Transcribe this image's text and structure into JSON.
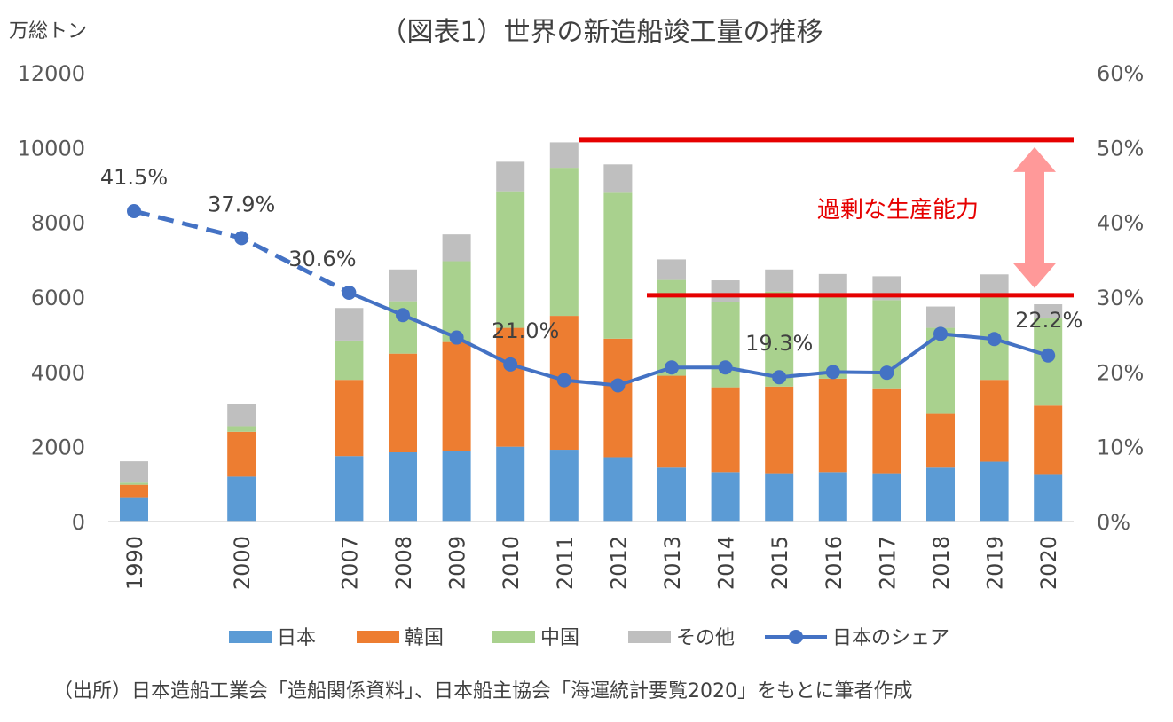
{
  "chart_data": {
    "type": "bar",
    "stacked": true,
    "title": "（図表1）世界の新造船竣工量の推移",
    "y_unit": "万総トン",
    "categories": [
      "1990",
      "2000",
      "2007",
      "2008",
      "2009",
      "2010",
      "2011",
      "2012",
      "2013",
      "2014",
      "2015",
      "2016",
      "2017",
      "2018",
      "2019",
      "2020"
    ],
    "ylim": [
      0,
      12000
    ],
    "y_ticks": [
      "0",
      "2000",
      "4000",
      "6000",
      "8000",
      "10000",
      "12000"
    ],
    "y2lim": [
      0,
      0.6
    ],
    "y2_ticks": [
      "0%",
      "10%",
      "20%",
      "30%",
      "40%",
      "50%",
      "60%"
    ],
    "series": [
      {
        "name": "日本",
        "color": "#5b9bd5",
        "values": [
          650,
          1200,
          1750,
          1850,
          1880,
          2000,
          1920,
          1720,
          1440,
          1320,
          1290,
          1320,
          1290,
          1440,
          1600,
          1270
        ]
      },
      {
        "name": "韓国",
        "color": "#ed7d31",
        "values": [
          330,
          1200,
          2040,
          2640,
          2920,
          3180,
          3580,
          3170,
          2460,
          2270,
          2320,
          2500,
          2250,
          1440,
          2190,
          1830
        ]
      },
      {
        "name": "中国",
        "color": "#a9d18e",
        "values": [
          80,
          150,
          1050,
          1400,
          2160,
          3650,
          3960,
          3900,
          2560,
          2270,
          2540,
          2290,
          2380,
          2300,
          2300,
          2330
        ]
      },
      {
        "name": "その他",
        "color": "#bfbfbf",
        "values": [
          550,
          600,
          870,
          850,
          720,
          790,
          680,
          760,
          550,
          590,
          590,
          510,
          640,
          570,
          520,
          380
        ]
      }
    ],
    "line_series": {
      "name": "日本のシェア",
      "color": "#4472c4",
      "axis": "right",
      "values": [
        0.415,
        0.379,
        0.306,
        0.276,
        0.246,
        0.21,
        0.189,
        0.182,
        0.206,
        0.206,
        0.193,
        0.2,
        0.199,
        0.251,
        0.244,
        0.222
      ],
      "dashed_through": "2007"
    },
    "data_labels": [
      {
        "category": "1990",
        "text": "41.5%"
      },
      {
        "category": "2000",
        "text": "37.9%"
      },
      {
        "category": "2007",
        "text": "30.6%"
      },
      {
        "category": "2010",
        "text": "21.0%"
      },
      {
        "category": "2015",
        "text": "19.3%"
      },
      {
        "category": "2020",
        "text": "22.2%"
      }
    ],
    "annotation": {
      "text": "過剰な生産能力",
      "upper_line_value": 10200,
      "upper_line_from": "2011",
      "lower_line_value": 6050,
      "lower_line_from": "2013",
      "line_color": "#e60000",
      "arrow_color": "#ff9999"
    },
    "legend_position": "bottom",
    "grid": false
  },
  "source": "（出所）日本造船工業会「造船関係資料」、日本船主協会「海運統計要覧2020」をもとに筆者作成"
}
